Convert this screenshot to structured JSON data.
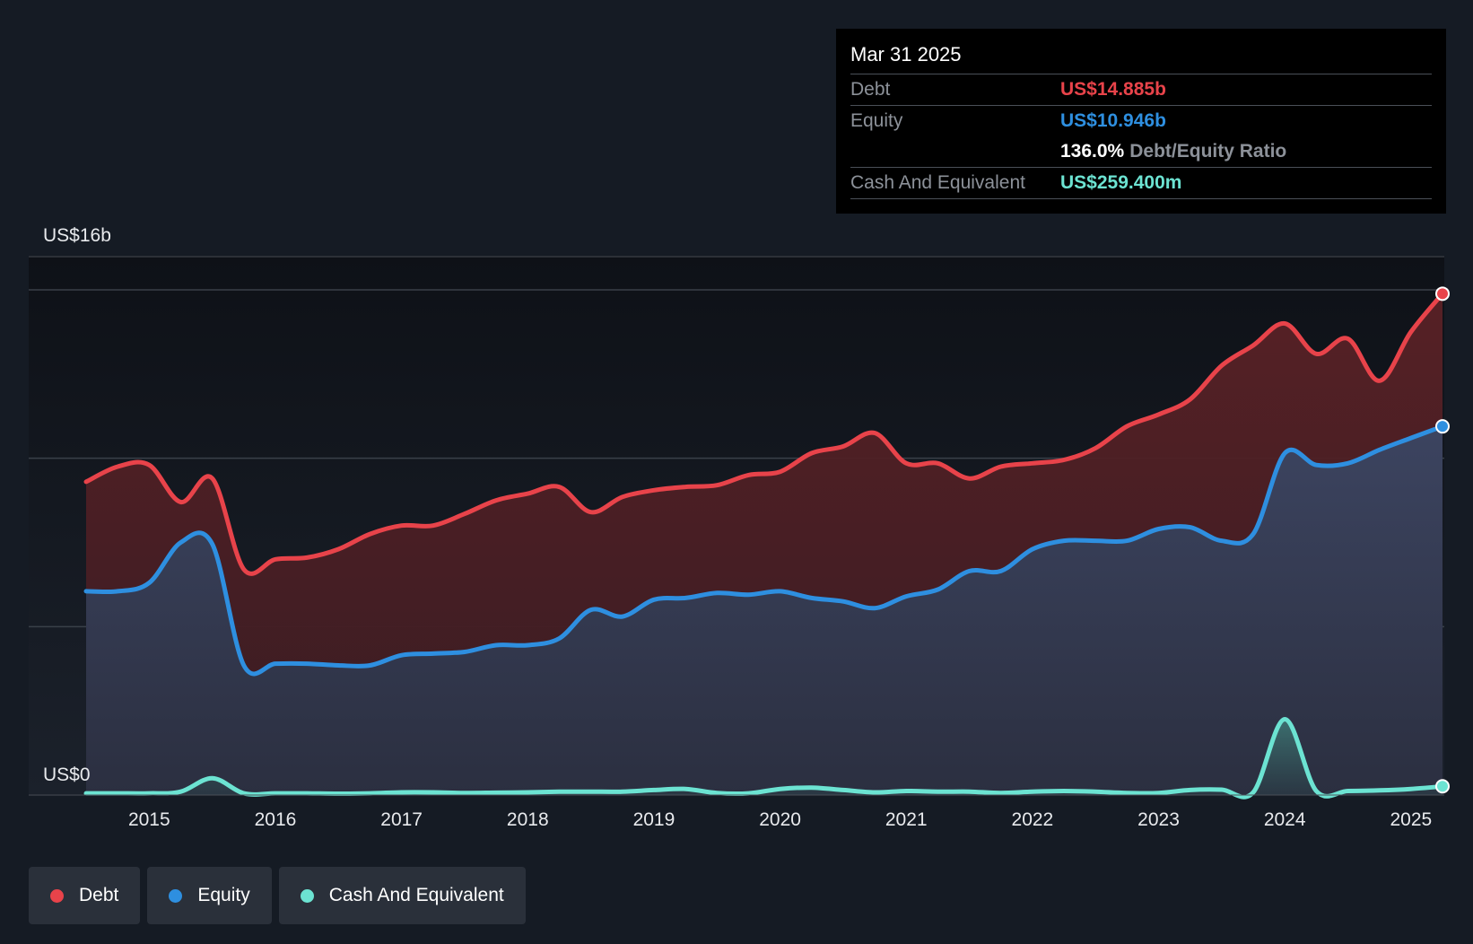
{
  "chart_data": {
    "type": "area",
    "y_axis": {
      "top_label": "US$16b",
      "bottom_label": "US$0",
      "ylim": [
        0,
        16
      ]
    },
    "x_tick_labels": [
      "2015",
      "2016",
      "2017",
      "2018",
      "2019",
      "2020",
      "2021",
      "2022",
      "2023",
      "2024",
      "2025"
    ],
    "xlim": [
      2014.5,
      2025.25
    ],
    "series": [
      {
        "name": "Debt",
        "color": "#e8434a",
        "x": [
          2014.5,
          2014.75,
          2015.0,
          2015.25,
          2015.5,
          2015.75,
          2016.0,
          2016.25,
          2016.5,
          2016.75,
          2017.0,
          2017.25,
          2017.5,
          2017.75,
          2018.0,
          2018.25,
          2018.5,
          2018.75,
          2019.0,
          2019.25,
          2019.5,
          2019.75,
          2020.0,
          2020.25,
          2020.5,
          2020.75,
          2021.0,
          2021.25,
          2021.5,
          2021.75,
          2022.0,
          2022.25,
          2022.5,
          2022.75,
          2023.0,
          2023.25,
          2023.5,
          2023.75,
          2024.0,
          2024.25,
          2024.5,
          2024.75,
          2025.0,
          2025.25
        ],
        "values": [
          9.3,
          9.75,
          9.8,
          8.7,
          9.4,
          6.7,
          7.0,
          7.05,
          7.3,
          7.75,
          8.0,
          8.0,
          8.35,
          8.75,
          8.95,
          9.15,
          8.4,
          8.85,
          9.05,
          9.15,
          9.2,
          9.5,
          9.6,
          10.15,
          10.35,
          10.75,
          9.85,
          9.85,
          9.4,
          9.75,
          9.85,
          9.95,
          10.3,
          10.95,
          11.3,
          11.75,
          12.75,
          13.35,
          14.0,
          13.1,
          13.55,
          12.3,
          13.75,
          14.885
        ]
      },
      {
        "name": "Equity",
        "color": "#2e8fe0",
        "x": [
          2014.5,
          2014.75,
          2015.0,
          2015.25,
          2015.5,
          2015.75,
          2016.0,
          2016.25,
          2016.5,
          2016.75,
          2017.0,
          2017.25,
          2017.5,
          2017.75,
          2018.0,
          2018.25,
          2018.5,
          2018.75,
          2019.0,
          2019.25,
          2019.5,
          2019.75,
          2020.0,
          2020.25,
          2020.5,
          2020.75,
          2021.0,
          2021.25,
          2021.5,
          2021.75,
          2022.0,
          2022.25,
          2022.5,
          2022.75,
          2023.0,
          2023.25,
          2023.5,
          2023.75,
          2024.0,
          2024.25,
          2024.5,
          2024.75,
          2025.0,
          2025.25
        ],
        "values": [
          6.05,
          6.05,
          6.3,
          7.5,
          7.45,
          3.85,
          3.9,
          3.9,
          3.85,
          3.85,
          4.15,
          4.2,
          4.25,
          4.45,
          4.45,
          4.65,
          5.5,
          5.3,
          5.8,
          5.85,
          6.0,
          5.95,
          6.05,
          5.85,
          5.75,
          5.55,
          5.9,
          6.1,
          6.65,
          6.65,
          7.3,
          7.55,
          7.55,
          7.55,
          7.9,
          7.95,
          7.55,
          7.75,
          10.15,
          9.8,
          9.85,
          10.25,
          10.6,
          10.946
        ]
      },
      {
        "name": "Cash And Equivalent",
        "color": "#6ce3d2",
        "x": [
          2014.5,
          2014.75,
          2015.0,
          2015.25,
          2015.5,
          2015.75,
          2016.0,
          2016.25,
          2016.5,
          2016.75,
          2017.0,
          2017.25,
          2017.5,
          2017.75,
          2018.0,
          2018.25,
          2018.5,
          2018.75,
          2019.0,
          2019.25,
          2019.5,
          2019.75,
          2020.0,
          2020.25,
          2020.5,
          2020.75,
          2021.0,
          2021.25,
          2021.5,
          2021.75,
          2022.0,
          2022.25,
          2022.5,
          2022.75,
          2023.0,
          2023.25,
          2023.5,
          2023.75,
          2024.0,
          2024.25,
          2024.5,
          2024.75,
          2025.0,
          2025.25
        ],
        "values": [
          0.05,
          0.05,
          0.05,
          0.1,
          0.5,
          0.05,
          0.05,
          0.05,
          0.04,
          0.05,
          0.08,
          0.08,
          0.06,
          0.07,
          0.08,
          0.1,
          0.1,
          0.1,
          0.15,
          0.18,
          0.06,
          0.05,
          0.18,
          0.22,
          0.15,
          0.08,
          0.12,
          0.1,
          0.1,
          0.06,
          0.1,
          0.12,
          0.1,
          0.06,
          0.06,
          0.15,
          0.16,
          0.08,
          2.25,
          0.12,
          0.12,
          0.14,
          0.18,
          0.2594
        ]
      }
    ],
    "grid": true,
    "legend_position": "bottom-left"
  },
  "tooltip": {
    "date": "Mar 31 2025",
    "rows": {
      "debt_label": "Debt",
      "debt_value": "US$14.885b",
      "equity_label": "Equity",
      "equity_value": "US$10.946b",
      "ratio_value": "136.0%",
      "ratio_label": "Debt/Equity Ratio",
      "cash_label": "Cash And Equivalent",
      "cash_value": "US$259.400m"
    }
  },
  "legend": {
    "items": [
      {
        "label": "Debt",
        "color": "#e8434a"
      },
      {
        "label": "Equity",
        "color": "#2e8fe0"
      },
      {
        "label": "Cash And Equivalent",
        "color": "#6ce3d2"
      }
    ]
  }
}
